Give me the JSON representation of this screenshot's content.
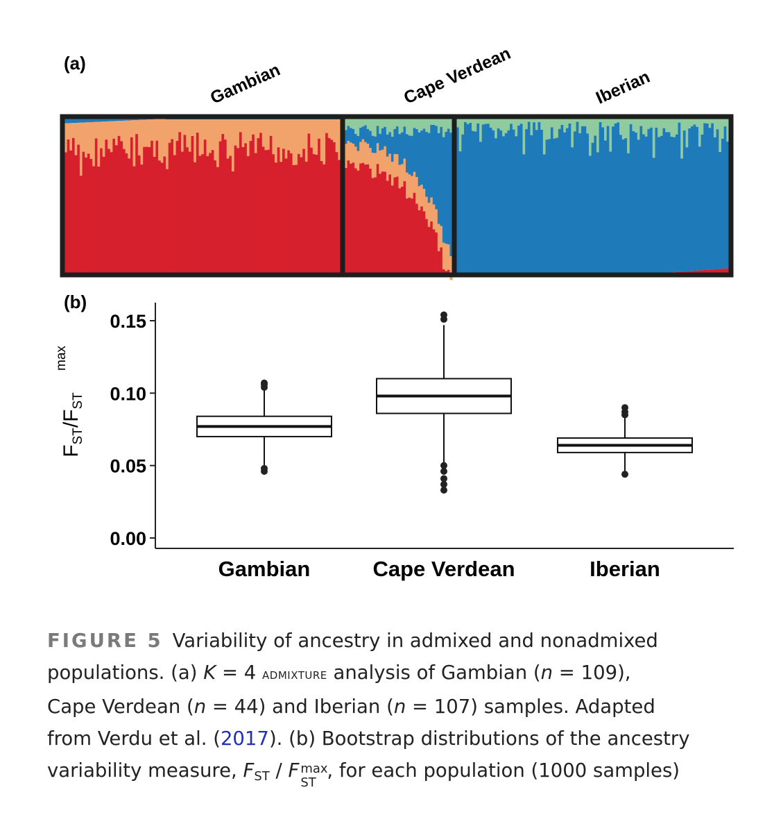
{
  "panel_a": {
    "letter": "(a)",
    "populations": [
      "Gambian",
      "Cape Verdean",
      "Iberian"
    ],
    "sample_counts": [
      109,
      44,
      107
    ],
    "component_colors": {
      "red": "#d7202d",
      "orange": "#f2a36b",
      "blue": "#1e7ab8",
      "green": "#8fcb9e"
    }
  },
  "panel_b": {
    "letter": "(b)",
    "ylabel_main": "F",
    "ylabel_sub1": "ST",
    "ylabel_sub2": "ST",
    "ylabel_sup": "max"
  },
  "chart_data": {
    "type": "box",
    "categories": [
      "Gambian",
      "Cape Verdean",
      "Iberian"
    ],
    "ylim": [
      0.0,
      0.16
    ],
    "yticks": [
      "0.00",
      "0.05",
      "0.10",
      "0.15"
    ],
    "ytick_values": [
      0.0,
      0.05,
      0.1,
      0.15
    ],
    "grid": false,
    "boxes": [
      {
        "name": "Gambian",
        "whisker_low": 0.05,
        "q1": 0.07,
        "median": 0.077,
        "q3": 0.084,
        "whisker_high": 0.103,
        "outliers": [
          0.046,
          0.048,
          0.104,
          0.106,
          0.107
        ]
      },
      {
        "name": "Cape Verdean",
        "whisker_low": 0.05,
        "q1": 0.086,
        "median": 0.098,
        "q3": 0.11,
        "whisker_high": 0.147,
        "outliers": [
          0.033,
          0.037,
          0.041,
          0.046,
          0.05,
          0.151,
          0.154
        ]
      },
      {
        "name": "Iberian",
        "whisker_low": 0.045,
        "q1": 0.059,
        "median": 0.064,
        "q3": 0.069,
        "whisker_high": 0.084,
        "outliers": [
          0.044,
          0.085,
          0.087,
          0.09
        ]
      }
    ]
  },
  "caption": {
    "figure_label": "FIGURE 5",
    "line1": "Variability of ancestry in admixed and nonadmixed",
    "line2a": "populations. (a) ",
    "k_var": "K",
    "k_eq": " = 4 ",
    "admixture": "admixture",
    "line2b": " analysis of Gambian (",
    "n_var": "n",
    "gam_n": " = 109),",
    "line3a": "Cape Verdean (",
    "cv_n": " = 44) and Iberian (",
    "ib_n": " = 107) samples. Adapted",
    "line4a": "from Verdu et al. (",
    "ref_year": "2017",
    "line4b": "). (b) Bootstrap distributions of the ancestry",
    "line5a": "variability measure, ",
    "f": "F",
    "st": "ST",
    "slash": " / ",
    "max": "max",
    "line5b": ", for each population (1000 samples)"
  }
}
